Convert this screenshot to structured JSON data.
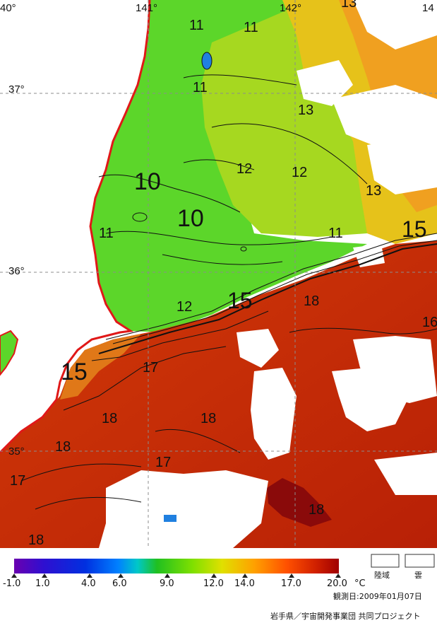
{
  "map": {
    "longitude_labels": [
      "40°",
      "141°",
      "142°",
      "14"
    ],
    "latitude_labels": [
      "37°",
      "36°",
      "35°"
    ],
    "contour_labels": [
      "11",
      "11",
      "11",
      "13",
      "13",
      "12",
      "12",
      "13",
      "10",
      "10",
      "11",
      "11",
      "15",
      "15",
      "12",
      "18",
      "16",
      "15",
      "17",
      "18",
      "18",
      "18",
      "17",
      "18",
      "17",
      "18"
    ]
  },
  "legend": {
    "scale_values": [
      "-1.0",
      "1.0",
      "4.0",
      "6.0",
      "9.0",
      "12.0",
      "14.0",
      "17.0",
      "20.0"
    ],
    "unit": "°C",
    "gradient_colors": [
      "#6a00b0",
      "#2f0fd0",
      "#0030e0",
      "#0080ff",
      "#00c8c8",
      "#20c020",
      "#80e000",
      "#e0e000",
      "#ffa000",
      "#ff5000",
      "#d02000",
      "#a00000"
    ],
    "land_label": "陸域",
    "cloud_label": "雲",
    "observation_date": "観測日:2009年01月07日",
    "credit": "岩手県／宇宙開発事業団 共同プロジェクト"
  }
}
